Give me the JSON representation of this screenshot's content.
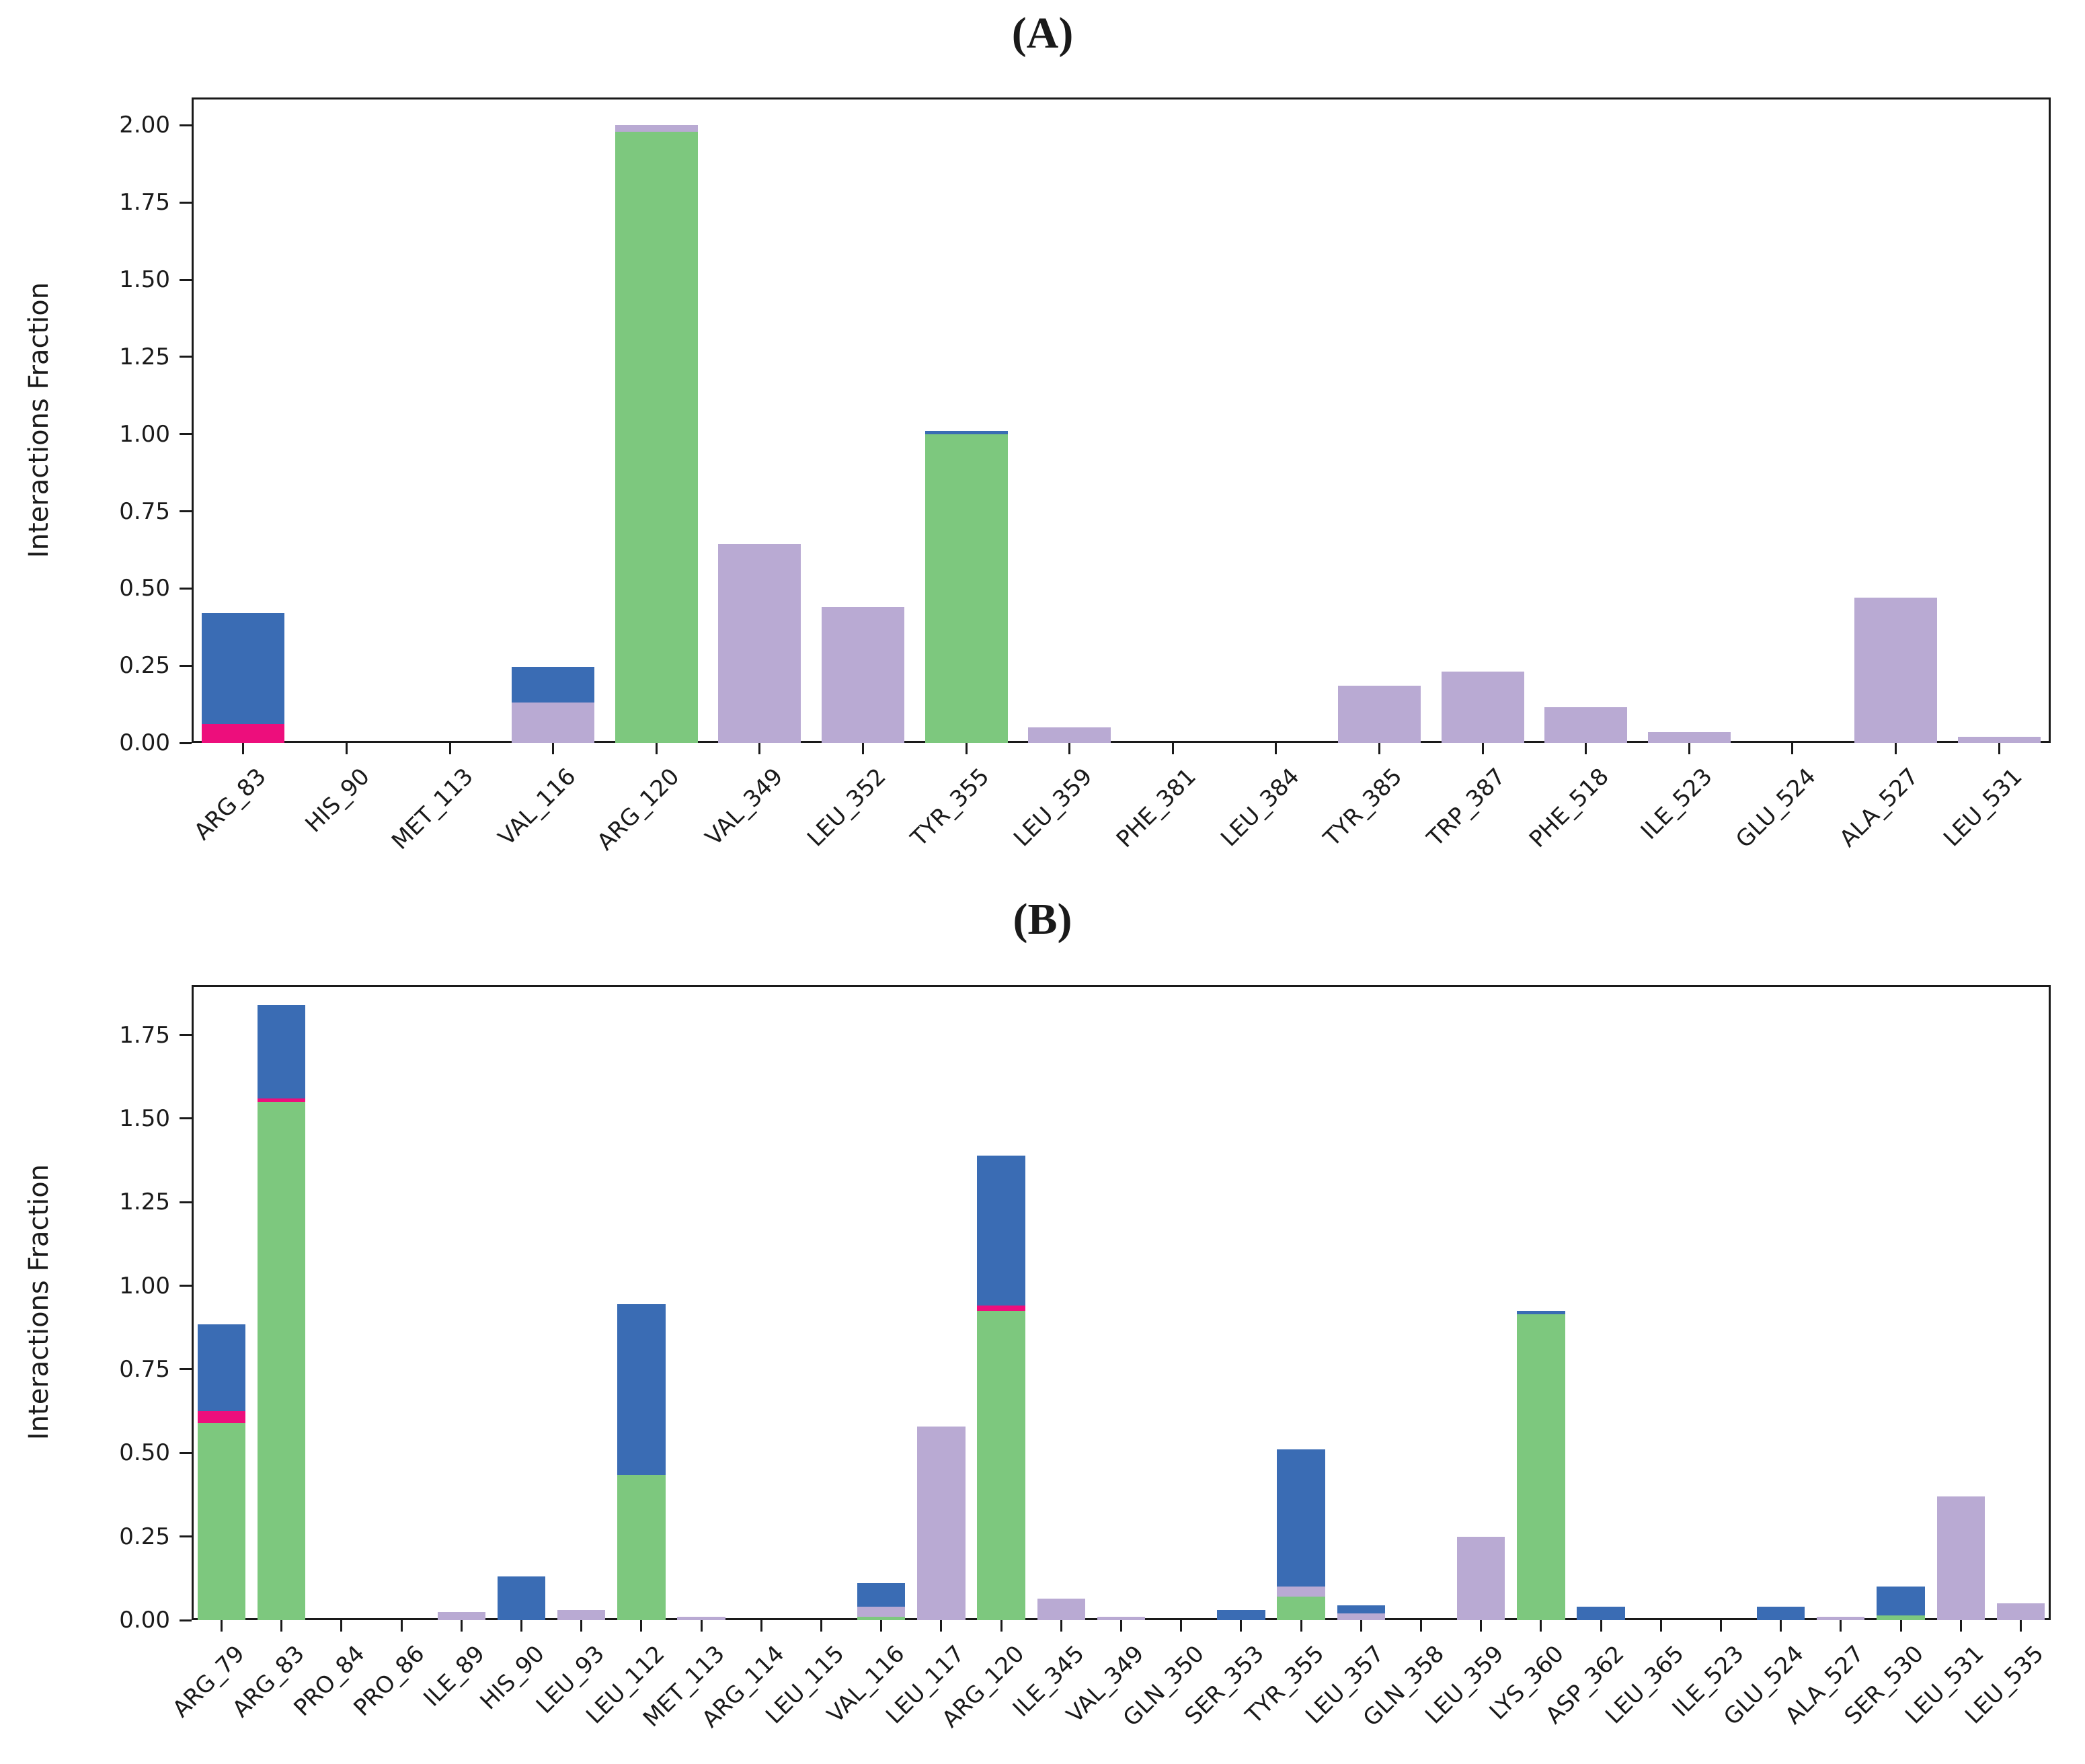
{
  "figure": {
    "background": "#ffffff"
  },
  "palette": {
    "blue": "#3a6cb4",
    "green": "#7dc87e",
    "purple": "#b9aad3",
    "pink": "#ed0e7c",
    "axis": "#1a1a1a"
  },
  "chart_data": [
    {
      "id": "A",
      "type": "bar",
      "stacked": true,
      "title": "(A)",
      "xlabel": "",
      "ylabel": "Interactions Fraction",
      "ylim": [
        0,
        2.09
      ],
      "yticks": [
        0,
        0.25,
        0.5,
        0.75,
        1.0,
        1.25,
        1.5,
        1.75,
        2.0
      ],
      "grid": false,
      "legend": null,
      "bar_width_fraction": 0.8,
      "categories": [
        "ARG_83",
        "HIS_90",
        "MET_113",
        "VAL_116",
        "ARG_120",
        "VAL_349",
        "LEU_352",
        "TYR_355",
        "LEU_359",
        "PHE_381",
        "LEU_384",
        "TYR_385",
        "TRP_387",
        "PHE_518",
        "ILE_523",
        "GLU_524",
        "ALA_527",
        "LEU_531"
      ],
      "bars": [
        {
          "category": "ARG_83",
          "segments": [
            [
              "pink",
              0.06
            ],
            [
              "blue",
              0.36
            ]
          ]
        },
        {
          "category": "HIS_90",
          "segments": []
        },
        {
          "category": "MET_113",
          "segments": []
        },
        {
          "category": "VAL_116",
          "segments": [
            [
              "purple",
              0.13
            ],
            [
              "blue",
              0.115
            ]
          ]
        },
        {
          "category": "ARG_120",
          "segments": [
            [
              "green",
              1.98
            ],
            [
              "purple",
              0.02
            ]
          ]
        },
        {
          "category": "VAL_349",
          "segments": [
            [
              "purple",
              0.645
            ]
          ]
        },
        {
          "category": "LEU_352",
          "segments": [
            [
              "purple",
              0.44
            ]
          ]
        },
        {
          "category": "TYR_355",
          "segments": [
            [
              "green",
              1.0
            ],
            [
              "blue",
              0.01
            ]
          ]
        },
        {
          "category": "LEU_359",
          "segments": [
            [
              "purple",
              0.05
            ]
          ]
        },
        {
          "category": "PHE_381",
          "segments": []
        },
        {
          "category": "LEU_384",
          "segments": []
        },
        {
          "category": "TYR_385",
          "segments": [
            [
              "purple",
              0.185
            ]
          ]
        },
        {
          "category": "TRP_387",
          "segments": [
            [
              "purple",
              0.23
            ]
          ]
        },
        {
          "category": "PHE_518",
          "segments": [
            [
              "purple",
              0.115
            ]
          ]
        },
        {
          "category": "ILE_523",
          "segments": [
            [
              "purple",
              0.035
            ]
          ]
        },
        {
          "category": "GLU_524",
          "segments": []
        },
        {
          "category": "ALA_527",
          "segments": [
            [
              "purple",
              0.47
            ]
          ]
        },
        {
          "category": "LEU_531",
          "segments": [
            [
              "purple",
              0.02
            ]
          ]
        }
      ]
    },
    {
      "id": "B",
      "type": "bar",
      "stacked": true,
      "title": "(B)",
      "xlabel": "",
      "ylabel": "Interactions Fraction",
      "ylim": [
        0,
        1.9
      ],
      "yticks": [
        0,
        0.25,
        0.5,
        0.75,
        1.0,
        1.25,
        1.5,
        1.75
      ],
      "grid": false,
      "legend": null,
      "bar_width_fraction": 0.8,
      "categories": [
        "ARG_79",
        "ARG_83",
        "PRO_84",
        "PRO_86",
        "ILE_89",
        "HIS_90",
        "LEU_93",
        "LEU_112",
        "MET_113",
        "ARG_114",
        "LEU_115",
        "VAL_116",
        "LEU_117",
        "ARG_120",
        "ILE_345",
        "VAL_349",
        "GLN_350",
        "SER_353",
        "TYR_355",
        "LEU_357",
        "GLN_358",
        "LEU_359",
        "LYS_360",
        "ASP_362",
        "LEU_365",
        "ILE_523",
        "GLU_524",
        "ALA_527",
        "SER_530",
        "LEU_531",
        "LEU_535"
      ],
      "bars": [
        {
          "category": "ARG_79",
          "segments": [
            [
              "green",
              0.59
            ],
            [
              "pink",
              0.035
            ],
            [
              "blue",
              0.26
            ]
          ]
        },
        {
          "category": "ARG_83",
          "segments": [
            [
              "green",
              1.55
            ],
            [
              "pink",
              0.01
            ],
            [
              "blue",
              0.28
            ]
          ]
        },
        {
          "category": "PRO_84",
          "segments": []
        },
        {
          "category": "PRO_86",
          "segments": []
        },
        {
          "category": "ILE_89",
          "segments": [
            [
              "purple",
              0.025
            ]
          ]
        },
        {
          "category": "HIS_90",
          "segments": [
            [
              "blue",
              0.13
            ]
          ]
        },
        {
          "category": "LEU_93",
          "segments": [
            [
              "purple",
              0.03
            ]
          ]
        },
        {
          "category": "LEU_112",
          "segments": [
            [
              "green",
              0.435
            ],
            [
              "blue",
              0.51
            ]
          ]
        },
        {
          "category": "MET_113",
          "segments": [
            [
              "purple",
              0.01
            ]
          ]
        },
        {
          "category": "ARG_114",
          "segments": []
        },
        {
          "category": "LEU_115",
          "segments": []
        },
        {
          "category": "VAL_116",
          "segments": [
            [
              "green",
              0.01
            ],
            [
              "purple",
              0.03
            ],
            [
              "blue",
              0.07
            ]
          ]
        },
        {
          "category": "LEU_117",
          "segments": [
            [
              "purple",
              0.58
            ]
          ]
        },
        {
          "category": "ARG_120",
          "segments": [
            [
              "green",
              0.925
            ],
            [
              "pink",
              0.015
            ],
            [
              "blue",
              0.45
            ]
          ]
        },
        {
          "category": "ILE_345",
          "segments": [
            [
              "purple",
              0.065
            ]
          ]
        },
        {
          "category": "VAL_349",
          "segments": [
            [
              "purple",
              0.01
            ]
          ]
        },
        {
          "category": "GLN_350",
          "segments": []
        },
        {
          "category": "SER_353",
          "segments": [
            [
              "blue",
              0.03
            ]
          ]
        },
        {
          "category": "TYR_355",
          "segments": [
            [
              "green",
              0.07
            ],
            [
              "purple",
              0.03
            ],
            [
              "blue",
              0.41
            ]
          ]
        },
        {
          "category": "LEU_357",
          "segments": [
            [
              "purple",
              0.02
            ],
            [
              "blue",
              0.025
            ]
          ]
        },
        {
          "category": "GLN_358",
          "segments": []
        },
        {
          "category": "LEU_359",
          "segments": [
            [
              "purple",
              0.25
            ]
          ]
        },
        {
          "category": "LYS_360",
          "segments": [
            [
              "green",
              0.915
            ],
            [
              "blue",
              0.01
            ]
          ]
        },
        {
          "category": "ASP_362",
          "segments": [
            [
              "blue",
              0.04
            ]
          ]
        },
        {
          "category": "LEU_365",
          "segments": []
        },
        {
          "category": "ILE_523",
          "segments": []
        },
        {
          "category": "GLU_524",
          "segments": [
            [
              "blue",
              0.04
            ]
          ]
        },
        {
          "category": "ALA_527",
          "segments": [
            [
              "purple",
              0.01
            ]
          ]
        },
        {
          "category": "SER_530",
          "segments": [
            [
              "green",
              0.015
            ],
            [
              "blue",
              0.085
            ]
          ]
        },
        {
          "category": "LEU_531",
          "segments": [
            [
              "purple",
              0.37
            ]
          ]
        },
        {
          "category": "LEU_535",
          "segments": [
            [
              "purple",
              0.05
            ]
          ]
        }
      ]
    }
  ]
}
